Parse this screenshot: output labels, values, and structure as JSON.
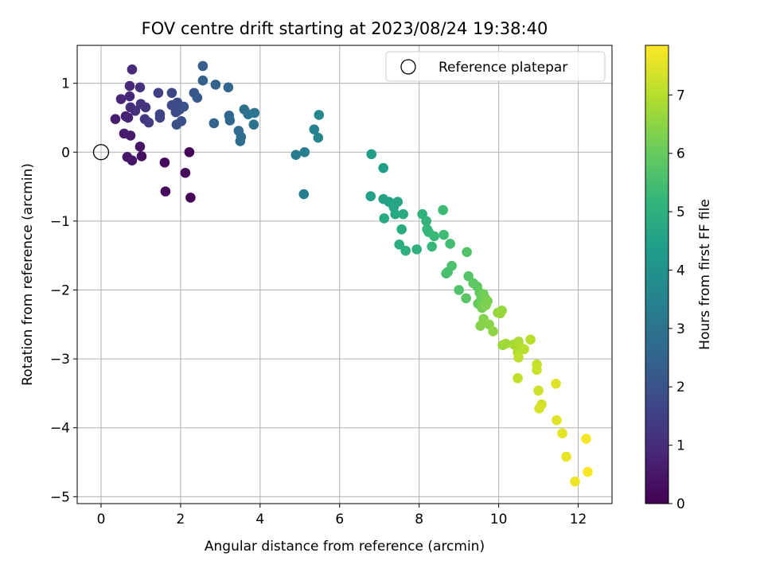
{
  "chart_data": {
    "type": "scatter",
    "title": "FOV centre drift starting at 2023/08/24 19:38:40",
    "xlabel": "Angular distance from reference (arcmin)",
    "ylabel": "Rotation from reference (arcmin)",
    "xlim": [
      -0.6,
      12.85
    ],
    "ylim": [
      -5.1,
      1.55
    ],
    "xticks": [
      0,
      2,
      4,
      6,
      8,
      10,
      12
    ],
    "yticks": [
      1,
      0,
      -1,
      -2,
      -3,
      -4,
      -5
    ],
    "xtick_labels": [
      "0",
      "2",
      "4",
      "6",
      "8",
      "10",
      "12"
    ],
    "ytick_labels": [
      "1",
      "0",
      "−1",
      "−2",
      "−3",
      "−4",
      "−5"
    ],
    "grid": true,
    "legend": {
      "placement": "top-right",
      "entries": [
        "Reference platepar"
      ]
    },
    "reference_point": {
      "x": 0,
      "y": 0
    },
    "colorbar": {
      "label": "Hours from first FF file",
      "range": [
        0,
        7.85
      ],
      "ticks": [
        0,
        1,
        2,
        3,
        4,
        5,
        6,
        7
      ],
      "tick_labels": [
        "0",
        "1",
        "2",
        "3",
        "4",
        "5",
        "6",
        "7"
      ],
      "colormap": "viridis"
    },
    "points": [
      {
        "x": 2.25,
        "y": -0.66,
        "h": 0.05
      },
      {
        "x": 1.62,
        "y": -0.57,
        "h": 0.15
      },
      {
        "x": 2.22,
        "y": 0.0,
        "h": 0.1
      },
      {
        "x": 2.12,
        "y": -0.3,
        "h": 0.2
      },
      {
        "x": 1.6,
        "y": -0.15,
        "h": 0.25
      },
      {
        "x": 1.02,
        "y": -0.06,
        "h": 0.35
      },
      {
        "x": 0.98,
        "y": 0.08,
        "h": 0.4
      },
      {
        "x": 0.78,
        "y": -0.12,
        "h": 0.45
      },
      {
        "x": 0.66,
        "y": -0.07,
        "h": 0.5
      },
      {
        "x": 0.74,
        "y": 0.24,
        "h": 0.55
      },
      {
        "x": 0.58,
        "y": 0.27,
        "h": 0.6
      },
      {
        "x": 0.36,
        "y": 0.48,
        "h": 0.65
      },
      {
        "x": 0.62,
        "y": 0.52,
        "h": 0.7
      },
      {
        "x": 0.68,
        "y": 0.5,
        "h": 0.75
      },
      {
        "x": 0.5,
        "y": 0.77,
        "h": 0.8
      },
      {
        "x": 0.72,
        "y": 0.81,
        "h": 0.85
      },
      {
        "x": 0.72,
        "y": 0.96,
        "h": 0.9
      },
      {
        "x": 0.78,
        "y": 1.2,
        "h": 0.95
      },
      {
        "x": 0.74,
        "y": 0.65,
        "h": 1.0
      },
      {
        "x": 0.86,
        "y": 0.6,
        "h": 1.05
      },
      {
        "x": 0.98,
        "y": 0.94,
        "h": 1.1
      },
      {
        "x": 1.0,
        "y": 0.7,
        "h": 1.15
      },
      {
        "x": 1.12,
        "y": 0.65,
        "h": 1.2
      },
      {
        "x": 1.1,
        "y": 0.48,
        "h": 1.3
      },
      {
        "x": 1.2,
        "y": 0.43,
        "h": 1.4
      },
      {
        "x": 1.44,
        "y": 0.86,
        "h": 1.5
      },
      {
        "x": 1.48,
        "y": 0.55,
        "h": 1.55
      },
      {
        "x": 1.48,
        "y": 0.5,
        "h": 1.6
      },
      {
        "x": 1.78,
        "y": 0.86,
        "h": 1.65
      },
      {
        "x": 1.78,
        "y": 0.68,
        "h": 1.7
      },
      {
        "x": 1.88,
        "y": 0.58,
        "h": 1.75
      },
      {
        "x": 1.92,
        "y": 0.72,
        "h": 1.8
      },
      {
        "x": 1.98,
        "y": 0.62,
        "h": 1.85
      },
      {
        "x": 2.02,
        "y": 0.45,
        "h": 1.9
      },
      {
        "x": 1.9,
        "y": 0.4,
        "h": 1.95
      },
      {
        "x": 2.08,
        "y": 0.66,
        "h": 2.0
      },
      {
        "x": 2.34,
        "y": 0.86,
        "h": 2.1
      },
      {
        "x": 2.42,
        "y": 0.79,
        "h": 2.2
      },
      {
        "x": 2.56,
        "y": 1.25,
        "h": 2.3
      },
      {
        "x": 2.56,
        "y": 1.04,
        "h": 2.35
      },
      {
        "x": 2.88,
        "y": 0.98,
        "h": 2.45
      },
      {
        "x": 2.84,
        "y": 0.42,
        "h": 2.5
      },
      {
        "x": 3.2,
        "y": 0.94,
        "h": 2.55
      },
      {
        "x": 3.22,
        "y": 0.53,
        "h": 2.6
      },
      {
        "x": 3.24,
        "y": 0.46,
        "h": 2.65
      },
      {
        "x": 3.46,
        "y": 0.31,
        "h": 2.75
      },
      {
        "x": 3.5,
        "y": 0.16,
        "h": 2.8
      },
      {
        "x": 3.52,
        "y": 0.22,
        "h": 2.85
      },
      {
        "x": 3.6,
        "y": 0.62,
        "h": 2.9
      },
      {
        "x": 3.7,
        "y": 0.55,
        "h": 2.95
      },
      {
        "x": 3.84,
        "y": 0.4,
        "h": 3.0
      },
      {
        "x": 3.86,
        "y": 0.57,
        "h": 3.05
      },
      {
        "x": 4.9,
        "y": -0.04,
        "h": 3.3
      },
      {
        "x": 5.12,
        "y": 0.0,
        "h": 3.35
      },
      {
        "x": 5.1,
        "y": -0.61,
        "h": 3.4
      },
      {
        "x": 5.36,
        "y": 0.33,
        "h": 3.5
      },
      {
        "x": 5.46,
        "y": 0.21,
        "h": 3.6
      },
      {
        "x": 5.48,
        "y": 0.54,
        "h": 3.7
      },
      {
        "x": 6.8,
        "y": -0.03,
        "h": 4.35
      },
      {
        "x": 7.1,
        "y": -0.23,
        "h": 4.4
      },
      {
        "x": 6.78,
        "y": -0.64,
        "h": 4.45
      },
      {
        "x": 7.1,
        "y": -0.68,
        "h": 4.5
      },
      {
        "x": 7.24,
        "y": -0.72,
        "h": 4.55
      },
      {
        "x": 7.46,
        "y": -0.72,
        "h": 4.6
      },
      {
        "x": 7.36,
        "y": -0.8,
        "h": 4.65
      },
      {
        "x": 7.12,
        "y": -0.96,
        "h": 4.7
      },
      {
        "x": 7.4,
        "y": -0.9,
        "h": 4.75
      },
      {
        "x": 7.6,
        "y": -0.9,
        "h": 4.8
      },
      {
        "x": 7.56,
        "y": -1.12,
        "h": 4.85
      },
      {
        "x": 7.5,
        "y": -1.34,
        "h": 4.9
      },
      {
        "x": 7.66,
        "y": -1.43,
        "h": 4.95
      },
      {
        "x": 7.94,
        "y": -1.41,
        "h": 5.0
      },
      {
        "x": 8.08,
        "y": -0.9,
        "h": 5.05
      },
      {
        "x": 8.18,
        "y": -1.0,
        "h": 5.1
      },
      {
        "x": 8.2,
        "y": -1.12,
        "h": 5.15
      },
      {
        "x": 8.24,
        "y": -1.16,
        "h": 5.2
      },
      {
        "x": 8.32,
        "y": -1.37,
        "h": 5.25
      },
      {
        "x": 8.38,
        "y": -1.22,
        "h": 5.3
      },
      {
        "x": 8.6,
        "y": -0.84,
        "h": 5.35
      },
      {
        "x": 8.62,
        "y": -1.2,
        "h": 5.4
      },
      {
        "x": 8.78,
        "y": -1.33,
        "h": 5.45
      },
      {
        "x": 8.68,
        "y": -1.76,
        "h": 5.5
      },
      {
        "x": 8.72,
        "y": -1.74,
        "h": 5.55
      },
      {
        "x": 8.82,
        "y": -1.65,
        "h": 5.6
      },
      {
        "x": 9.0,
        "y": -2.0,
        "h": 5.65
      },
      {
        "x": 9.2,
        "y": -1.45,
        "h": 5.7
      },
      {
        "x": 9.24,
        "y": -1.8,
        "h": 5.75
      },
      {
        "x": 9.18,
        "y": -2.12,
        "h": 5.8
      },
      {
        "x": 9.36,
        "y": -1.9,
        "h": 5.85
      },
      {
        "x": 9.46,
        "y": -1.95,
        "h": 5.9
      },
      {
        "x": 9.52,
        "y": -2.04,
        "h": 5.95
      },
      {
        "x": 9.48,
        "y": -2.2,
        "h": 6.0
      },
      {
        "x": 9.56,
        "y": -2.13,
        "h": 6.05
      },
      {
        "x": 9.62,
        "y": -2.06,
        "h": 6.1
      },
      {
        "x": 9.66,
        "y": -2.12,
        "h": 6.15
      },
      {
        "x": 9.58,
        "y": -2.26,
        "h": 6.2
      },
      {
        "x": 9.72,
        "y": -2.16,
        "h": 6.25
      },
      {
        "x": 9.68,
        "y": -2.22,
        "h": 6.3
      },
      {
        "x": 9.62,
        "y": -2.42,
        "h": 6.35
      },
      {
        "x": 9.54,
        "y": -2.52,
        "h": 6.4
      },
      {
        "x": 9.76,
        "y": -2.5,
        "h": 6.45
      },
      {
        "x": 9.86,
        "y": -2.6,
        "h": 6.5
      },
      {
        "x": 9.98,
        "y": -2.33,
        "h": 6.55
      },
      {
        "x": 10.08,
        "y": -2.3,
        "h": 6.6
      },
      {
        "x": 10.04,
        "y": -2.34,
        "h": 6.65
      },
      {
        "x": 10.1,
        "y": -2.8,
        "h": 6.7
      },
      {
        "x": 10.18,
        "y": -2.78,
        "h": 6.75
      },
      {
        "x": 10.38,
        "y": -2.79,
        "h": 6.8
      },
      {
        "x": 10.5,
        "y": -2.75,
        "h": 6.85
      },
      {
        "x": 10.48,
        "y": -2.9,
        "h": 6.9
      },
      {
        "x": 10.56,
        "y": -2.84,
        "h": 6.95
      },
      {
        "x": 10.64,
        "y": -2.86,
        "h": 7.0
      },
      {
        "x": 10.8,
        "y": -2.72,
        "h": 7.05
      },
      {
        "x": 10.5,
        "y": -2.98,
        "h": 7.1
      },
      {
        "x": 10.48,
        "y": -3.28,
        "h": 7.15
      },
      {
        "x": 10.96,
        "y": -3.08,
        "h": 7.2
      },
      {
        "x": 10.96,
        "y": -3.16,
        "h": 7.25
      },
      {
        "x": 11.0,
        "y": -3.46,
        "h": 7.3
      },
      {
        "x": 11.08,
        "y": -3.66,
        "h": 7.35
      },
      {
        "x": 11.02,
        "y": -3.72,
        "h": 7.4
      },
      {
        "x": 11.44,
        "y": -3.36,
        "h": 7.45
      },
      {
        "x": 11.46,
        "y": -3.89,
        "h": 7.5
      },
      {
        "x": 11.6,
        "y": -4.08,
        "h": 7.55
      },
      {
        "x": 11.7,
        "y": -4.42,
        "h": 7.6
      },
      {
        "x": 11.92,
        "y": -4.78,
        "h": 7.7
      },
      {
        "x": 12.2,
        "y": -4.16,
        "h": 7.75
      },
      {
        "x": 12.24,
        "y": -4.64,
        "h": 7.8
      }
    ]
  }
}
